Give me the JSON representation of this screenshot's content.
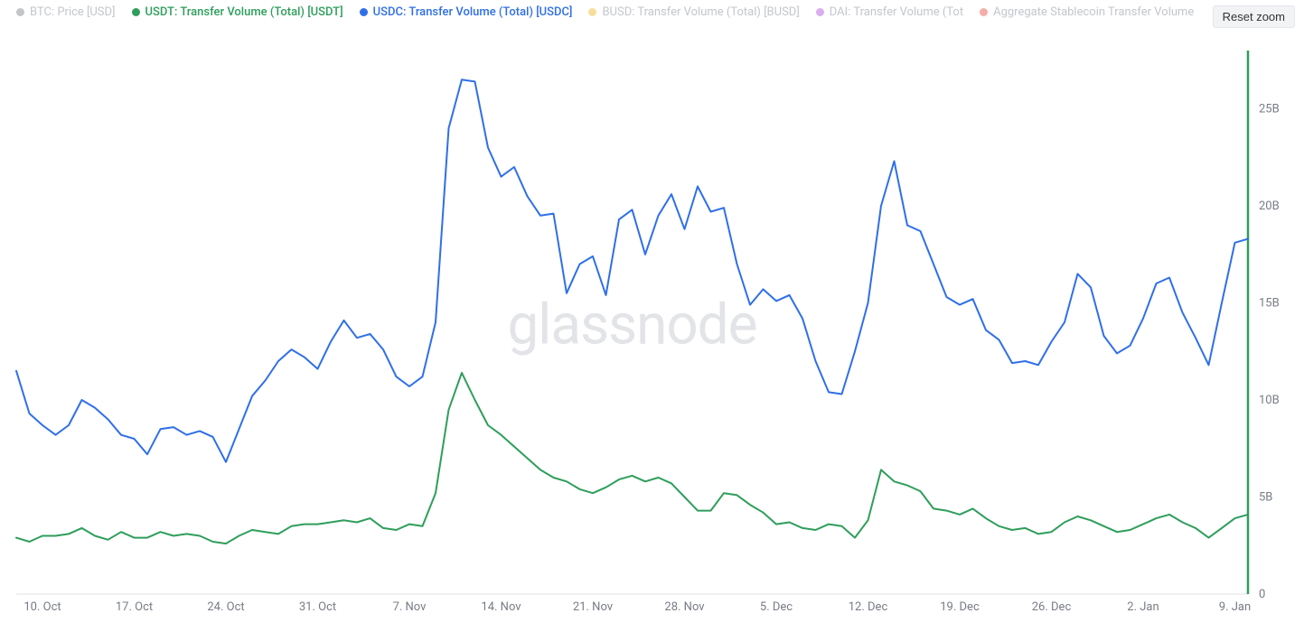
{
  "reset_zoom_label": "Reset zoom",
  "watermark": "glassnode",
  "colors": {
    "btc": "#7c7f85",
    "usdt": "#2e9e5b",
    "usdc": "#2f6fe8",
    "busd": "#e8b923",
    "dai": "#a94bd6",
    "agg": "#e84a3f",
    "grid": "#e0e0e0",
    "axis_text": "#777c85",
    "dim_text": "#c3c6cc",
    "background": "#ffffff"
  },
  "legend": [
    {
      "key": "btc",
      "label": "BTC: Price [USD]",
      "color_key": "btc",
      "dim": true
    },
    {
      "key": "usdt",
      "label": "USDT: Transfer Volume (Total) [USDT]",
      "color_key": "usdt",
      "dim": false
    },
    {
      "key": "usdc",
      "label": "USDC: Transfer Volume (Total) [USDC]",
      "color_key": "usdc",
      "dim": false
    },
    {
      "key": "busd",
      "label": "BUSD: Transfer Volume (Total) [BUSD]",
      "color_key": "busd",
      "dim": true
    },
    {
      "key": "dai",
      "label": "DAI: Transfer Volume (Tot",
      "color_key": "dai",
      "dim": true
    },
    {
      "key": "agg",
      "label": "Aggregate Stablecoin Transfer Volume",
      "color_key": "agg",
      "dim": true
    }
  ],
  "chart": {
    "type": "line",
    "x_domain_days": 94,
    "y_domain": [
      0,
      28
    ],
    "y_ticks": [
      {
        "v": 0,
        "label": "0"
      },
      {
        "v": 5,
        "label": "5B"
      },
      {
        "v": 10,
        "label": "10B"
      },
      {
        "v": 15,
        "label": "15B"
      },
      {
        "v": 20,
        "label": "20B"
      },
      {
        "v": 25,
        "label": "25B"
      }
    ],
    "x_ticks": [
      {
        "d": 2,
        "label": "10. Oct"
      },
      {
        "d": 9,
        "label": "17. Oct"
      },
      {
        "d": 16,
        "label": "24. Oct"
      },
      {
        "d": 23,
        "label": "31. Oct"
      },
      {
        "d": 30,
        "label": "7. Nov"
      },
      {
        "d": 37,
        "label": "14. Nov"
      },
      {
        "d": 44,
        "label": "21. Nov"
      },
      {
        "d": 51,
        "label": "28. Nov"
      },
      {
        "d": 58,
        "label": "5. Dec"
      },
      {
        "d": 65,
        "label": "12. Dec"
      },
      {
        "d": 72,
        "label": "19. Dec"
      },
      {
        "d": 79,
        "label": "26. Dec"
      },
      {
        "d": 86,
        "label": "2. Jan"
      },
      {
        "d": 93,
        "label": "9. Jan"
      }
    ],
    "right_axis_color_key": "usdt",
    "series": [
      {
        "name": "usdc",
        "color_key": "usdc",
        "stroke_width": 2,
        "points": [
          [
            0,
            11.5
          ],
          [
            1,
            9.3
          ],
          [
            2,
            8.7
          ],
          [
            3,
            8.2
          ],
          [
            4,
            8.7
          ],
          [
            5,
            10.0
          ],
          [
            6,
            9.6
          ],
          [
            7,
            9.0
          ],
          [
            8,
            8.2
          ],
          [
            9,
            8.0
          ],
          [
            10,
            7.2
          ],
          [
            11,
            8.5
          ],
          [
            12,
            8.6
          ],
          [
            13,
            8.2
          ],
          [
            14,
            8.4
          ],
          [
            15,
            8.1
          ],
          [
            16,
            6.8
          ],
          [
            17,
            8.5
          ],
          [
            18,
            10.2
          ],
          [
            19,
            11.0
          ],
          [
            20,
            12.0
          ],
          [
            21,
            12.6
          ],
          [
            22,
            12.2
          ],
          [
            23,
            11.6
          ],
          [
            24,
            13.0
          ],
          [
            25,
            14.1
          ],
          [
            26,
            13.2
          ],
          [
            27,
            13.4
          ],
          [
            28,
            12.6
          ],
          [
            29,
            11.2
          ],
          [
            30,
            10.7
          ],
          [
            31,
            11.2
          ],
          [
            32,
            14.0
          ],
          [
            33,
            24.0
          ],
          [
            34,
            26.5
          ],
          [
            35,
            26.4
          ],
          [
            36,
            23.0
          ],
          [
            37,
            21.5
          ],
          [
            38,
            22.0
          ],
          [
            39,
            20.5
          ],
          [
            40,
            19.5
          ],
          [
            41,
            19.6
          ],
          [
            42,
            15.5
          ],
          [
            43,
            17.0
          ],
          [
            44,
            17.4
          ],
          [
            45,
            15.4
          ],
          [
            46,
            19.3
          ],
          [
            47,
            19.8
          ],
          [
            48,
            17.5
          ],
          [
            49,
            19.5
          ],
          [
            50,
            20.6
          ],
          [
            51,
            18.8
          ],
          [
            52,
            21.0
          ],
          [
            53,
            19.7
          ],
          [
            54,
            19.9
          ],
          [
            55,
            17.0
          ],
          [
            56,
            14.9
          ],
          [
            57,
            15.7
          ],
          [
            58,
            15.1
          ],
          [
            59,
            15.4
          ],
          [
            60,
            14.2
          ],
          [
            61,
            12.0
          ],
          [
            62,
            10.4
          ],
          [
            63,
            10.3
          ],
          [
            64,
            12.5
          ],
          [
            65,
            15.0
          ],
          [
            66,
            20.0
          ],
          [
            67,
            22.3
          ],
          [
            68,
            19.0
          ],
          [
            69,
            18.7
          ],
          [
            70,
            17.0
          ],
          [
            71,
            15.3
          ],
          [
            72,
            14.9
          ],
          [
            73,
            15.2
          ],
          [
            74,
            13.6
          ],
          [
            75,
            13.1
          ],
          [
            76,
            11.9
          ],
          [
            77,
            12.0
          ],
          [
            78,
            11.8
          ],
          [
            79,
            13.0
          ],
          [
            80,
            14.0
          ],
          [
            81,
            16.5
          ],
          [
            82,
            15.8
          ],
          [
            83,
            13.3
          ],
          [
            84,
            12.4
          ],
          [
            85,
            12.8
          ],
          [
            86,
            14.2
          ],
          [
            87,
            16.0
          ],
          [
            88,
            16.3
          ],
          [
            89,
            14.5
          ],
          [
            90,
            13.2
          ],
          [
            91,
            11.8
          ],
          [
            92,
            15.0
          ],
          [
            93,
            18.1
          ],
          [
            94,
            18.3
          ]
        ]
      },
      {
        "name": "usdt",
        "color_key": "usdt",
        "stroke_width": 2,
        "points": [
          [
            0,
            2.9
          ],
          [
            1,
            2.7
          ],
          [
            2,
            3.0
          ],
          [
            3,
            3.0
          ],
          [
            4,
            3.1
          ],
          [
            5,
            3.4
          ],
          [
            6,
            3.0
          ],
          [
            7,
            2.8
          ],
          [
            8,
            3.2
          ],
          [
            9,
            2.9
          ],
          [
            10,
            2.9
          ],
          [
            11,
            3.2
          ],
          [
            12,
            3.0
          ],
          [
            13,
            3.1
          ],
          [
            14,
            3.0
          ],
          [
            15,
            2.7
          ],
          [
            16,
            2.6
          ],
          [
            17,
            3.0
          ],
          [
            18,
            3.3
          ],
          [
            19,
            3.2
          ],
          [
            20,
            3.1
          ],
          [
            21,
            3.5
          ],
          [
            22,
            3.6
          ],
          [
            23,
            3.6
          ],
          [
            24,
            3.7
          ],
          [
            25,
            3.8
          ],
          [
            26,
            3.7
          ],
          [
            27,
            3.9
          ],
          [
            28,
            3.4
          ],
          [
            29,
            3.3
          ],
          [
            30,
            3.6
          ],
          [
            31,
            3.5
          ],
          [
            32,
            5.2
          ],
          [
            33,
            9.5
          ],
          [
            34,
            11.4
          ],
          [
            35,
            10.0
          ],
          [
            36,
            8.7
          ],
          [
            37,
            8.2
          ],
          [
            38,
            7.6
          ],
          [
            39,
            7.0
          ],
          [
            40,
            6.4
          ],
          [
            41,
            6.0
          ],
          [
            42,
            5.8
          ],
          [
            43,
            5.4
          ],
          [
            44,
            5.2
          ],
          [
            45,
            5.5
          ],
          [
            46,
            5.9
          ],
          [
            47,
            6.1
          ],
          [
            48,
            5.8
          ],
          [
            49,
            6.0
          ],
          [
            50,
            5.7
          ],
          [
            51,
            5.0
          ],
          [
            52,
            4.3
          ],
          [
            53,
            4.3
          ],
          [
            54,
            5.2
          ],
          [
            55,
            5.1
          ],
          [
            56,
            4.6
          ],
          [
            57,
            4.2
          ],
          [
            58,
            3.6
          ],
          [
            59,
            3.7
          ],
          [
            60,
            3.4
          ],
          [
            61,
            3.3
          ],
          [
            62,
            3.6
          ],
          [
            63,
            3.5
          ],
          [
            64,
            2.9
          ],
          [
            65,
            3.8
          ],
          [
            66,
            6.4
          ],
          [
            67,
            5.8
          ],
          [
            68,
            5.6
          ],
          [
            69,
            5.3
          ],
          [
            70,
            4.4
          ],
          [
            71,
            4.3
          ],
          [
            72,
            4.1
          ],
          [
            73,
            4.4
          ],
          [
            74,
            3.9
          ],
          [
            75,
            3.5
          ],
          [
            76,
            3.3
          ],
          [
            77,
            3.4
          ],
          [
            78,
            3.1
          ],
          [
            79,
            3.2
          ],
          [
            80,
            3.7
          ],
          [
            81,
            4.0
          ],
          [
            82,
            3.8
          ],
          [
            83,
            3.5
          ],
          [
            84,
            3.2
          ],
          [
            85,
            3.3
          ],
          [
            86,
            3.6
          ],
          [
            87,
            3.9
          ],
          [
            88,
            4.1
          ],
          [
            89,
            3.7
          ],
          [
            90,
            3.4
          ],
          [
            91,
            2.9
          ],
          [
            92,
            3.4
          ],
          [
            93,
            3.9
          ],
          [
            94,
            4.1
          ]
        ]
      }
    ]
  }
}
